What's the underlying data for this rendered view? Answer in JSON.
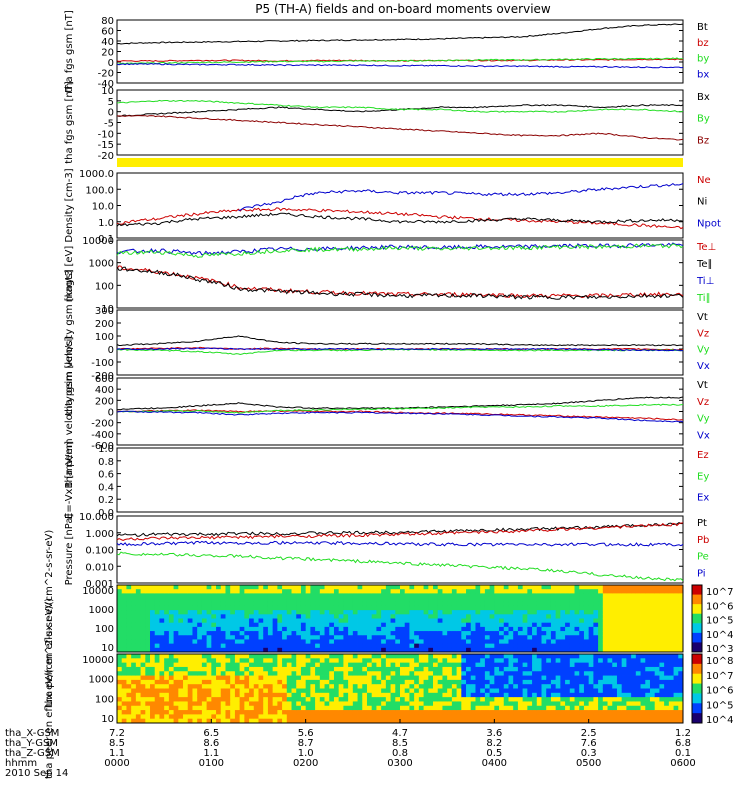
{
  "title": "P5 (TH-A) fields and on-board moments overview",
  "colors": {
    "black": "#000000",
    "red": "#cc0000",
    "green": "#22dd22",
    "blue": "#0000cc",
    "darkred": "#8b0000",
    "yellow": "#ffee00"
  },
  "chart_data": [
    {
      "id": "bfield",
      "type": "line",
      "ylabel": "tha fgs gsm [nT]",
      "ylim": [
        -40,
        80
      ],
      "ticks": [
        "80",
        "60",
        "40",
        "20",
        "0",
        "-20",
        "-40"
      ],
      "legend": [
        "Bt",
        "bz",
        "by",
        "bx"
      ],
      "series": [
        {
          "name": "Bt",
          "color": "black",
          "values": [
            35,
            37,
            38,
            39,
            40,
            41,
            42,
            43,
            44,
            46,
            48,
            55,
            64,
            70,
            72
          ]
        },
        {
          "name": "bz",
          "color": "red",
          "values": [
            2,
            2,
            3,
            3,
            2,
            3,
            3,
            2,
            3,
            3,
            3,
            4,
            4,
            5,
            5
          ]
        },
        {
          "name": "by",
          "color": "green",
          "values": [
            -3,
            -2,
            -1,
            0,
            1,
            1,
            2,
            2,
            3,
            4,
            4,
            5,
            6,
            6,
            7
          ]
        },
        {
          "name": "bx",
          "color": "blue",
          "values": [
            -4,
            -4,
            -5,
            -5,
            -6,
            -6,
            -6,
            -7,
            -7,
            -8,
            -8,
            -9,
            -9,
            -10,
            -10
          ]
        }
      ]
    },
    {
      "id": "bfield2",
      "type": "line",
      "ylabel": "tha fgs gsm [nT]",
      "ylim": [
        -20,
        10
      ],
      "ticks": [
        "10",
        "5",
        "0",
        "-5",
        "-10",
        "-15",
        "-20"
      ],
      "legend": [
        "Bx",
        "By",
        "Bz"
      ],
      "series": [
        {
          "name": "Bx",
          "color": "black",
          "values": [
            -2,
            -1,
            0,
            1,
            2,
            1,
            0,
            1,
            2,
            2,
            3,
            3,
            2,
            3,
            3
          ]
        },
        {
          "name": "By",
          "color": "green",
          "values": [
            4,
            5,
            5,
            4,
            3,
            2,
            2,
            1,
            1,
            0,
            0,
            0,
            1,
            1,
            0
          ]
        },
        {
          "name": "Bz",
          "color": "darkred",
          "values": [
            -2,
            -2,
            -3,
            -4,
            -5,
            -6,
            -7,
            -8,
            -9,
            -10,
            -11,
            -11,
            -10,
            -12,
            -13
          ]
        }
      ]
    },
    {
      "id": "density",
      "type": "line",
      "ylabel": "Density [cm-3]",
      "log": true,
      "ylim": [
        0.1,
        1000
      ],
      "ticks": [
        "1000.0",
        "100.0",
        "10.0",
        "1.0",
        "0.1"
      ],
      "legend": [
        "Ne",
        "Ni",
        "Npot"
      ],
      "series": [
        {
          "name": "Ne",
          "color": "red",
          "values": [
            0.8,
            1.5,
            3,
            5,
            6,
            5,
            4,
            3,
            2,
            1.5,
            1.2,
            1,
            0.8,
            0.6,
            0.4
          ]
        },
        {
          "name": "Ni",
          "color": "black",
          "values": [
            0.6,
            0.8,
            1.5,
            2,
            3,
            2,
            1.5,
            1,
            1,
            1.2,
            1.5,
            1.2,
            1,
            1.2,
            1.3
          ]
        },
        {
          "name": "Npot",
          "color": "blue",
          "values": [
            null,
            null,
            null,
            5,
            15,
            60,
            80,
            60,
            60,
            50,
            50,
            60,
            100,
            150,
            200
          ]
        }
      ]
    },
    {
      "id": "temp",
      "type": "line",
      "ylabel": "magt3 [eV]",
      "log": true,
      "ylim": [
        10,
        10000
      ],
      "ticks": [
        "10000",
        "1000",
        "100",
        "10"
      ],
      "legend": [
        "Te⊥",
        "Te∥",
        "Ti⊥",
        "Ti∥"
      ],
      "series": [
        {
          "name": "Te⊥",
          "color": "red",
          "values": [
            600,
            400,
            200,
            80,
            60,
            50,
            45,
            40,
            40,
            40,
            35,
            35,
            35,
            40,
            40
          ]
        },
        {
          "name": "Te∥",
          "color": "black",
          "values": [
            550,
            380,
            180,
            70,
            55,
            45,
            40,
            35,
            35,
            35,
            30,
            30,
            30,
            35,
            35
          ]
        },
        {
          "name": "Ti⊥",
          "color": "blue",
          "values": [
            3000,
            3500,
            2500,
            3000,
            4000,
            4000,
            4500,
            5000,
            4500,
            5000,
            5000,
            5500,
            5500,
            6000,
            6000
          ]
        },
        {
          "name": "Ti∥",
          "color": "green",
          "values": [
            2500,
            3000,
            2000,
            2500,
            3500,
            3800,
            4000,
            4500,
            4000,
            4500,
            4500,
            5000,
            5000,
            5500,
            5500
          ]
        }
      ]
    },
    {
      "id": "vel1",
      "type": "line",
      "ylabel": "tha peim velocity gsm [km/s]",
      "ylim": [
        -200,
        300
      ],
      "ticks": [
        "300",
        "200",
        "100",
        "0",
        "-100",
        "-200"
      ],
      "legend": [
        "Vt",
        "Vz",
        "Vy",
        "Vx"
      ],
      "series": [
        {
          "name": "Vt",
          "color": "black",
          "values": [
            30,
            40,
            60,
            100,
            50,
            40,
            40,
            40,
            40,
            40,
            30,
            30,
            30,
            30,
            30
          ]
        },
        {
          "name": "Vz",
          "color": "red",
          "values": [
            0,
            5,
            10,
            0,
            5,
            0,
            0,
            0,
            0,
            0,
            0,
            0,
            0,
            0,
            -5
          ]
        },
        {
          "name": "Vy",
          "color": "green",
          "values": [
            -5,
            -10,
            -20,
            -40,
            -10,
            -10,
            -10,
            -5,
            -5,
            -10,
            -10,
            -10,
            -10,
            -10,
            -10
          ]
        },
        {
          "name": "Vx",
          "color": "blue",
          "values": [
            0,
            0,
            5,
            0,
            0,
            0,
            0,
            0,
            0,
            0,
            0,
            0,
            -5,
            -10,
            -10
          ]
        }
      ]
    },
    {
      "id": "vel2",
      "type": "line",
      "ylabel": "tha peem velocity gsm [km/s]",
      "ylim": [
        -600,
        600
      ],
      "ticks": [
        "600",
        "400",
        "200",
        "0",
        "-200",
        "-400",
        "-600"
      ],
      "legend": [
        "Vt",
        "Vz",
        "Vy",
        "Vx"
      ],
      "series": [
        {
          "name": "Vt",
          "color": "black",
          "values": [
            40,
            60,
            100,
            150,
            80,
            60,
            60,
            60,
            80,
            100,
            120,
            150,
            200,
            250,
            250
          ]
        },
        {
          "name": "Vz",
          "color": "red",
          "values": [
            0,
            10,
            20,
            0,
            10,
            0,
            0,
            -20,
            -30,
            -40,
            -60,
            -80,
            -100,
            -120,
            -150
          ]
        },
        {
          "name": "Vy",
          "color": "green",
          "values": [
            0,
            0,
            10,
            -20,
            20,
            30,
            40,
            50,
            60,
            80,
            80,
            100,
            100,
            120,
            120
          ]
        },
        {
          "name": "Vx",
          "color": "blue",
          "values": [
            0,
            -10,
            -20,
            -60,
            -30,
            -20,
            -20,
            -30,
            -40,
            -60,
            -80,
            -100,
            -120,
            -160,
            -180
          ]
        }
      ]
    },
    {
      "id": "efield",
      "type": "line",
      "ylabel": "E=-VxB [mV/m]",
      "ylim": [
        0,
        1
      ],
      "ticks": [
        "1.0",
        "0.8",
        "0.6",
        "0.4",
        "0.2",
        "0.0"
      ],
      "legend": [
        "Ez",
        "Ey",
        "Ex"
      ],
      "series": []
    },
    {
      "id": "pressure",
      "type": "line",
      "ylabel": "Pressure [nPa]",
      "log": true,
      "ylim": [
        0.001,
        10
      ],
      "ticks": [
        "10.000",
        "1.000",
        "0.100",
        "0.010",
        "0.001"
      ],
      "legend": [
        "Pt",
        "Pb",
        "Pe",
        "Pi"
      ],
      "series": [
        {
          "name": "Pt",
          "color": "black",
          "values": [
            0.7,
            0.8,
            0.8,
            0.9,
            0.9,
            0.95,
            1,
            1.1,
            1.2,
            1.4,
            1.6,
            1.8,
            2.2,
            2.8,
            3.5
          ]
        },
        {
          "name": "Pb",
          "color": "red",
          "values": [
            0.4,
            0.45,
            0.5,
            0.55,
            0.6,
            0.65,
            0.7,
            0.8,
            0.9,
            1.1,
            1.3,
            1.6,
            2,
            2.6,
            3.3
          ]
        },
        {
          "name": "Pe",
          "color": "green",
          "values": [
            0.06,
            0.05,
            0.045,
            0.04,
            0.03,
            0.025,
            0.02,
            0.015,
            0.012,
            0.009,
            0.007,
            0.005,
            0.003,
            0.002,
            0.0015
          ]
        },
        {
          "name": "Pi",
          "color": "blue",
          "values": [
            0.2,
            0.22,
            0.25,
            0.25,
            0.25,
            0.24,
            0.24,
            0.22,
            0.2,
            0.2,
            0.2,
            0.2,
            0.2,
            0.2,
            0.2
          ]
        }
      ]
    }
  ],
  "spectrograms": [
    {
      "id": "ions",
      "ylabel": "tha peir en eflux eV/(cm^2-s-sr-eV)",
      "ticks": [
        "10000",
        "1000",
        "100",
        "10"
      ],
      "cbticks": [
        "10^7",
        "10^6",
        "10^5",
        "10^4",
        "10^3"
      ]
    },
    {
      "id": "electrons",
      "ylabel": "tha peer en eflux eV/(cm^2-s-sr-eV)",
      "ticks": [
        "10000",
        "1000",
        "100",
        "10"
      ],
      "cbticks": [
        "10^8",
        "10^7",
        "10^6",
        "10^5",
        "10^4"
      ]
    }
  ],
  "xaxis": {
    "rows": [
      {
        "label": "tha_X-GSM",
        "values": [
          "7.2",
          "6.5",
          "5.6",
          "4.7",
          "3.6",
          "2.5",
          "1.2"
        ]
      },
      {
        "label": "tha_Y-GSM",
        "values": [
          "8.5",
          "8.6",
          "8.7",
          "8.5",
          "8.2",
          "7.6",
          "6.8"
        ]
      },
      {
        "label": "tha_Z-GSM",
        "values": [
          "1.1",
          "1.1",
          "1.0",
          "0.8",
          "0.5",
          "0.3",
          "0.1"
        ]
      },
      {
        "label": "hhmm",
        "values": [
          "0000",
          "0100",
          "0200",
          "0300",
          "0400",
          "0500",
          "0600"
        ]
      }
    ],
    "date": "2010 Sep 14"
  }
}
